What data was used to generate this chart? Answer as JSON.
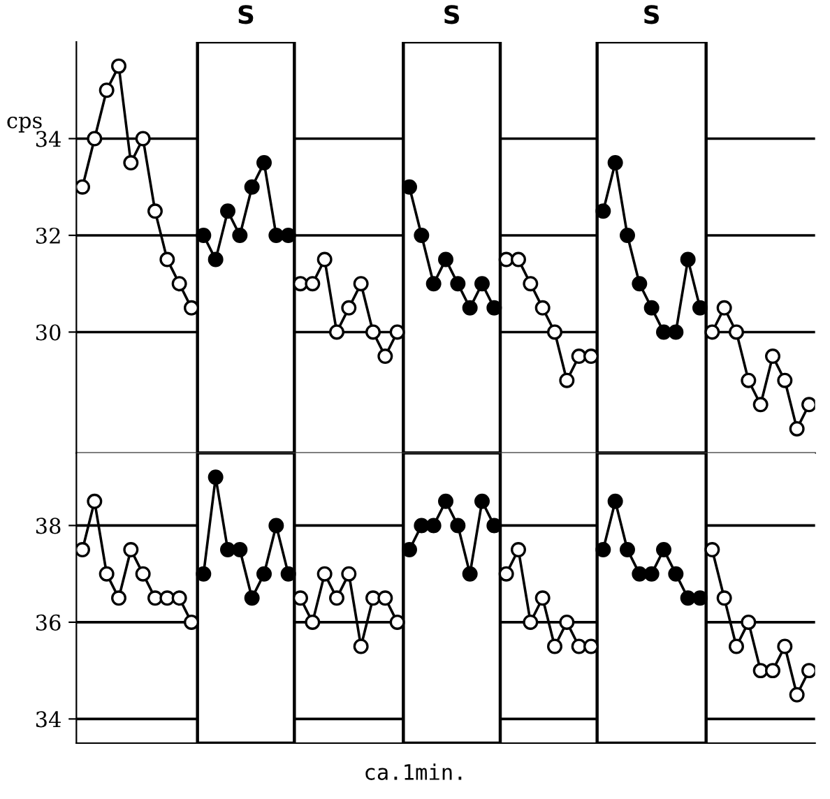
{
  "chart_data": [
    {
      "type": "line",
      "ylabel": "cps",
      "annotations": [
        "S",
        "S",
        "S"
      ],
      "categories": [
        null,
        null,
        null,
        null,
        null,
        null,
        null,
        null,
        null,
        null,
        null,
        null,
        null,
        null,
        null,
        null,
        null,
        null,
        null,
        null,
        null,
        null,
        null,
        null,
        null,
        null,
        null,
        null,
        null,
        null,
        null,
        null,
        null,
        null,
        null,
        null,
        null,
        null,
        null,
        null,
        null,
        null,
        null,
        null,
        null,
        null,
        null,
        null,
        null,
        null,
        null,
        null,
        null,
        null,
        null,
        null,
        null,
        null,
        null,
        null,
        null
      ],
      "series": [
        {
          "color": "#ffffff",
          "values": [
            33,
            34,
            35,
            35.5,
            33.5,
            34,
            32.5,
            31.5,
            31,
            30.5,
            null,
            null,
            null,
            null,
            null,
            null,
            null,
            null,
            31,
            31,
            31.5,
            30,
            30.5,
            31,
            30,
            29.5,
            30,
            null,
            null,
            null,
            null,
            null,
            null,
            null,
            null,
            31.5,
            31.5,
            31,
            30.5,
            30,
            29,
            29.5,
            29.5,
            null,
            null,
            null,
            null,
            null,
            null,
            null,
            null,
            null,
            30,
            30.5,
            30,
            29,
            28.5,
            29.5,
            29,
            28,
            28.5
          ]
        },
        {
          "color": "#000000",
          "values": [
            null,
            null,
            null,
            null,
            null,
            null,
            null,
            null,
            null,
            null,
            32,
            31.5,
            32.5,
            32,
            33,
            33.5,
            32,
            32,
            null,
            null,
            null,
            null,
            null,
            null,
            null,
            null,
            null,
            33,
            32,
            31,
            31.5,
            31,
            30.5,
            31,
            30.5,
            null,
            null,
            null,
            null,
            null,
            null,
            null,
            null,
            32.5,
            33.5,
            32,
            31,
            30.5,
            30,
            30,
            31.5,
            30.5,
            null,
            null,
            null,
            null,
            null,
            null,
            null,
            null,
            null
          ]
        }
      ],
      "ylim": [
        27.5,
        36
      ],
      "yticks": [
        30,
        32,
        34
      ],
      "grid": "y",
      "marker": "circle",
      "tick_labels": "y"
    },
    {
      "type": "line",
      "xlabel": "ca.1min.",
      "categories": [
        null,
        null,
        null,
        null,
        null,
        null,
        null,
        null,
        null,
        null,
        null,
        null,
        null,
        null,
        null,
        null,
        null,
        null,
        null,
        null,
        null,
        null,
        null,
        null,
        null,
        null,
        null,
        null,
        null,
        null,
        null,
        null,
        null,
        null,
        null,
        null,
        null,
        null,
        null,
        null,
        null,
        null,
        null,
        null,
        null,
        null,
        null,
        null,
        null,
        null,
        null,
        null,
        null,
        null,
        null,
        null,
        null,
        null,
        null,
        null,
        null
      ],
      "series": [
        {
          "color": "#ffffff",
          "values": [
            37.5,
            38.5,
            37,
            36.5,
            37.5,
            37,
            36.5,
            36.5,
            36.5,
            36,
            null,
            null,
            null,
            null,
            null,
            null,
            null,
            null,
            36.5,
            36,
            37,
            36.5,
            37,
            35.5,
            36.5,
            36.5,
            36,
            null,
            null,
            null,
            null,
            null,
            null,
            null,
            null,
            37,
            37.5,
            36,
            36.5,
            35.5,
            36,
            35.5,
            35.5,
            null,
            null,
            null,
            null,
            null,
            null,
            null,
            null,
            null,
            37.5,
            36.5,
            35.5,
            36,
            35,
            35,
            35.5,
            34.5,
            35
          ]
        },
        {
          "color": "#000000",
          "values": [
            null,
            null,
            null,
            null,
            null,
            null,
            null,
            null,
            null,
            null,
            37,
            39,
            37.5,
            37.5,
            36.5,
            37,
            38,
            37,
            null,
            null,
            null,
            null,
            null,
            null,
            null,
            null,
            null,
            37.5,
            38,
            38,
            38.5,
            38,
            37,
            38.5,
            38,
            null,
            null,
            null,
            null,
            null,
            null,
            null,
            null,
            37.5,
            38.5,
            37.5,
            37,
            37,
            37.5,
            37,
            36.5,
            36.5,
            null,
            null,
            null,
            null,
            null,
            null,
            null,
            null,
            null
          ]
        }
      ],
      "ylim": [
        33.5,
        39.5
      ],
      "yticks": [
        34,
        36,
        38
      ],
      "grid": "y",
      "marker": "circle",
      "tick_labels": "y"
    }
  ]
}
